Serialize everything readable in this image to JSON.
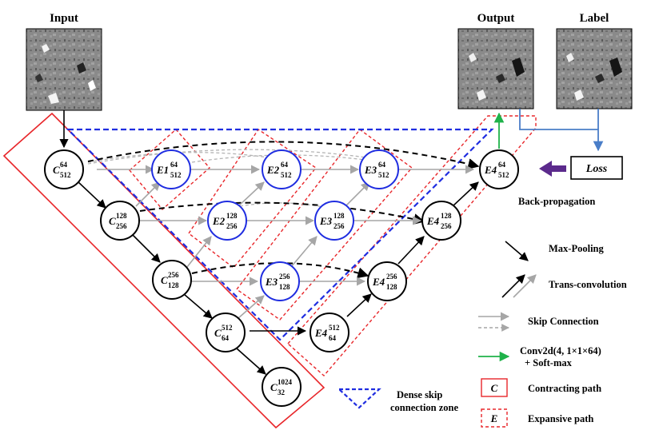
{
  "captions": {
    "input": "Input",
    "output": "Output",
    "label": "Label",
    "loss": "Loss",
    "backprop": "Back-propagation"
  },
  "nodes": {
    "c1": {
      "base": "C",
      "sup": "64",
      "sub": "512"
    },
    "c2": {
      "base": "C",
      "sup": "128",
      "sub": "256"
    },
    "c3": {
      "base": "C",
      "sup": "256",
      "sub": "128"
    },
    "c4": {
      "base": "C",
      "sup": "512",
      "sub": "64"
    },
    "c5": {
      "base": "C",
      "sup": "1024",
      "sub": "32"
    },
    "e1": {
      "base": "E1",
      "sup": "64",
      "sub": "512"
    },
    "e2a": {
      "base": "E2",
      "sup": "64",
      "sub": "512"
    },
    "e2b": {
      "base": "E2",
      "sup": "128",
      "sub": "256"
    },
    "e3a": {
      "base": "E3",
      "sup": "64",
      "sub": "512"
    },
    "e3b": {
      "base": "E3",
      "sup": "128",
      "sub": "256"
    },
    "e3c": {
      "base": "E3",
      "sup": "256",
      "sub": "128"
    },
    "e4a": {
      "base": "E4",
      "sup": "64",
      "sub": "512"
    },
    "e4b": {
      "base": "E4",
      "sup": "128",
      "sub": "256"
    },
    "e4c": {
      "base": "E4",
      "sup": "256",
      "sub": "128"
    },
    "e4d": {
      "base": "E4",
      "sup": "512",
      "sub": "64"
    }
  },
  "legend": {
    "maxpool": "Max-Pooling",
    "transconv": "Trans-convolution",
    "skip": "Skip Connection",
    "conv_line1": "Conv2d(4, 1×1×64)",
    "conv_line2": "+ Soft-max",
    "contract_letter": "C",
    "contract": "Contracting path",
    "expand_letter": "E",
    "expand": "Expansive path",
    "dense_line1": "Dense skip",
    "dense_line2": "connection zone"
  },
  "colors": {
    "red": "#e8262a",
    "blue": "#1f2de0",
    "green": "#1fb24a",
    "steel": "#4a7ec8",
    "purple": "#5b2a8c",
    "gray": "#a6a6a6"
  }
}
